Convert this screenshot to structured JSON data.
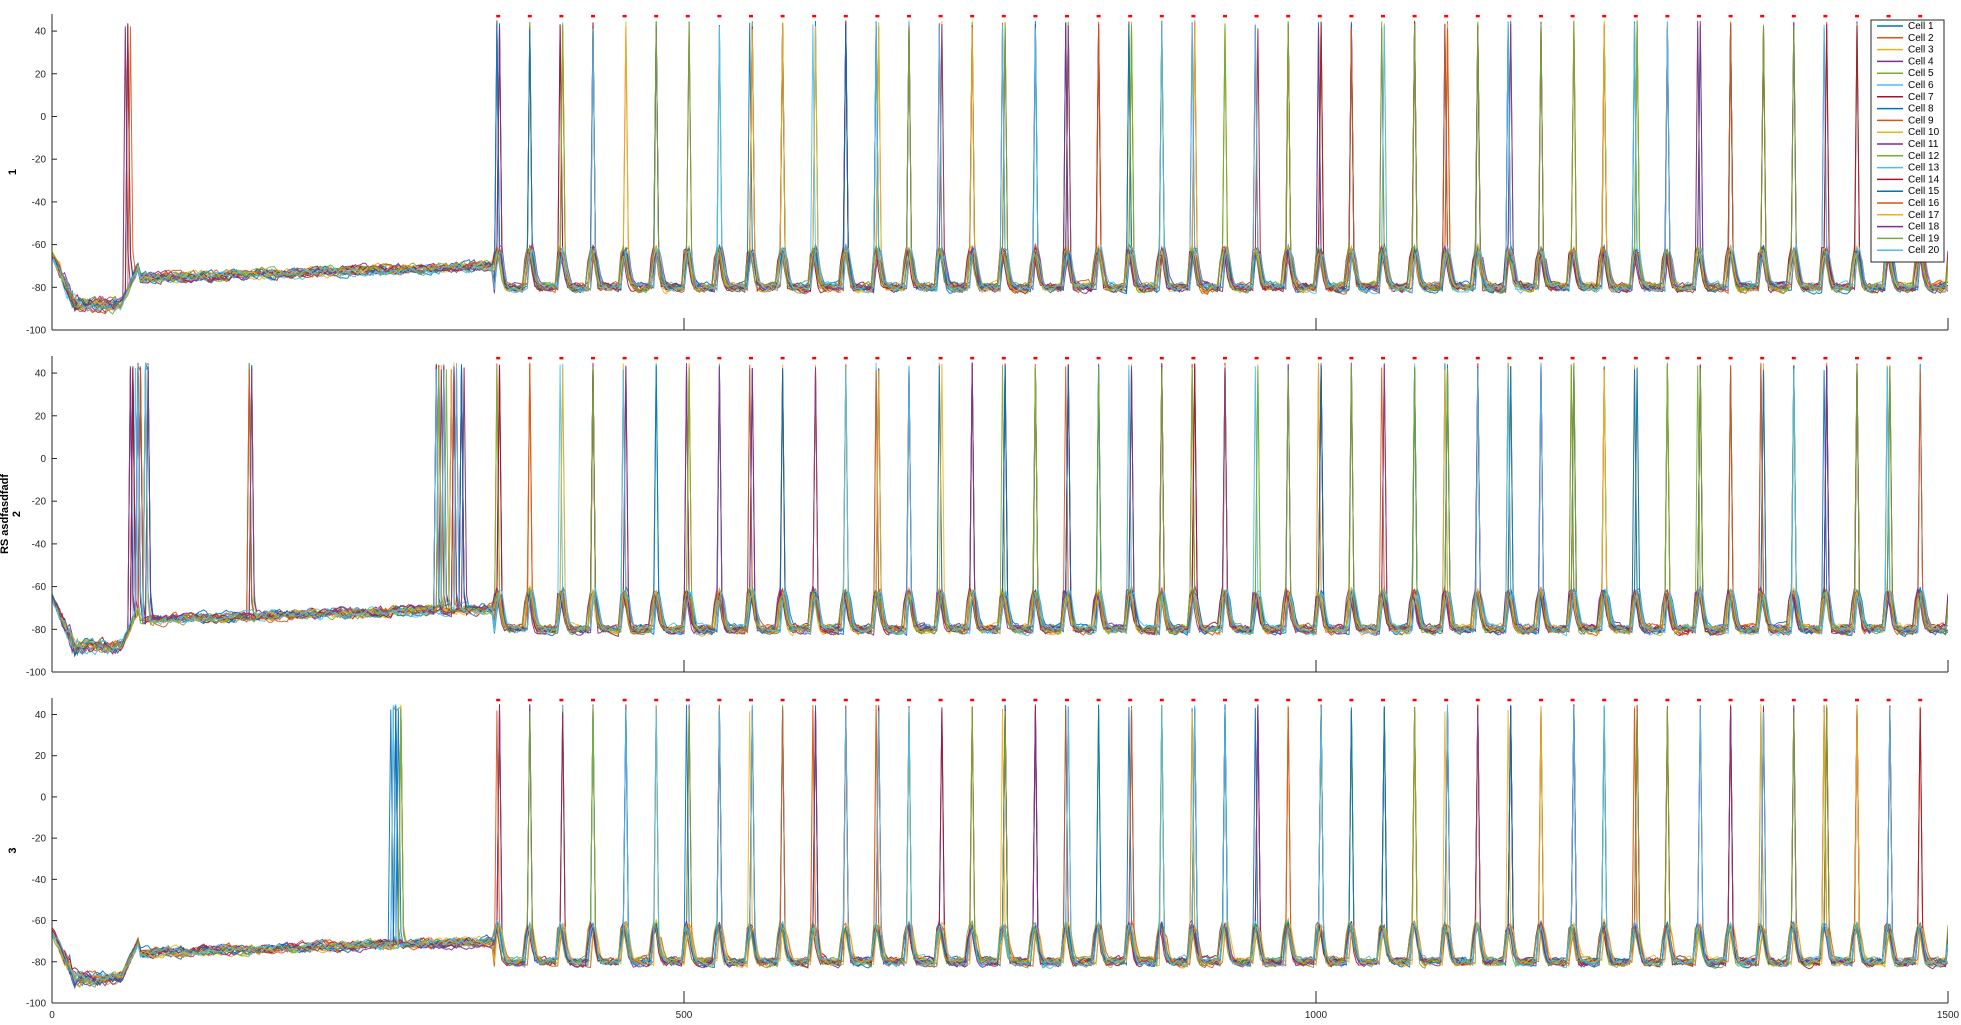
{
  "chart_data": [
    {
      "type": "line",
      "ylabel": "1",
      "xlim": [
        0,
        1500
      ],
      "ylim": [
        -100,
        48
      ],
      "yticks": [
        -100,
        -80,
        -60,
        -40,
        -20,
        0,
        20,
        40
      ],
      "xticks": [
        0,
        500,
        1000,
        1500
      ],
      "show_xtick_labels": false,
      "baseline_mV": -78,
      "pre_event_ms": 55,
      "burst_onset_ms": 350,
      "rhythm_period_ms": 25,
      "peak_mV": 45,
      "spike_markers_mV": 47,
      "spikes_before_onset_ms": [
        60
      ]
    },
    {
      "type": "line",
      "ylabel": "RS asdfasdfadf\n2",
      "xlim": [
        0,
        1500
      ],
      "ylim": [
        -100,
        48
      ],
      "yticks": [
        -100,
        -80,
        -60,
        -40,
        -20,
        0,
        20,
        40
      ],
      "xticks": [
        0,
        500,
        1000,
        1500
      ],
      "show_xtick_labels": false,
      "baseline_mV": -78,
      "pre_event_ms": 55,
      "burst_onset_ms": 350,
      "rhythm_period_ms": 25,
      "peak_mV": 45,
      "spike_markers_mV": 47,
      "spikes_before_onset_ms": [
        63,
        68,
        72,
        75,
        158,
        305,
        310,
        318,
        325
      ]
    },
    {
      "type": "line",
      "ylabel": "3",
      "xlim": [
        0,
        1500
      ],
      "ylim": [
        -100,
        48
      ],
      "yticks": [
        -100,
        -80,
        -60,
        -40,
        -20,
        0,
        20,
        40
      ],
      "xticks": [
        0,
        500,
        1000,
        1500
      ],
      "show_xtick_labels": true,
      "baseline_mV": -78,
      "pre_event_ms": 55,
      "burst_onset_ms": 350,
      "rhythm_period_ms": 25,
      "peak_mV": 45,
      "spike_markers_mV": 47,
      "spikes_before_onset_ms": [
        270,
        273,
        276
      ]
    }
  ],
  "legend": {
    "placement": "top-right",
    "entries": [
      "Cell 1",
      "Cell 2",
      "Cell 3",
      "Cell 4",
      "Cell 5",
      "Cell 6",
      "Cell 7",
      "Cell 8",
      "Cell 9",
      "Cell 10",
      "Cell 11",
      "Cell 12",
      "Cell 13",
      "Cell 14",
      "Cell 15",
      "Cell 16",
      "Cell 17",
      "Cell 18",
      "Cell 19",
      "Cell 20"
    ]
  },
  "colors": {
    "series": [
      "#0072BD",
      "#D95319",
      "#EDB120",
      "#7E2F8E",
      "#77AC30",
      "#4DBEEE",
      "#A2142F",
      "#0072BD",
      "#D95319",
      "#EDB120",
      "#7E2F8E",
      "#77AC30",
      "#4DBEEE",
      "#A2142F",
      "#0072BD",
      "#D95319",
      "#EDB120",
      "#7E2F8E",
      "#77AC30",
      "#4DBEEE"
    ],
    "marker": "#FF0000",
    "axis": "#262626"
  }
}
